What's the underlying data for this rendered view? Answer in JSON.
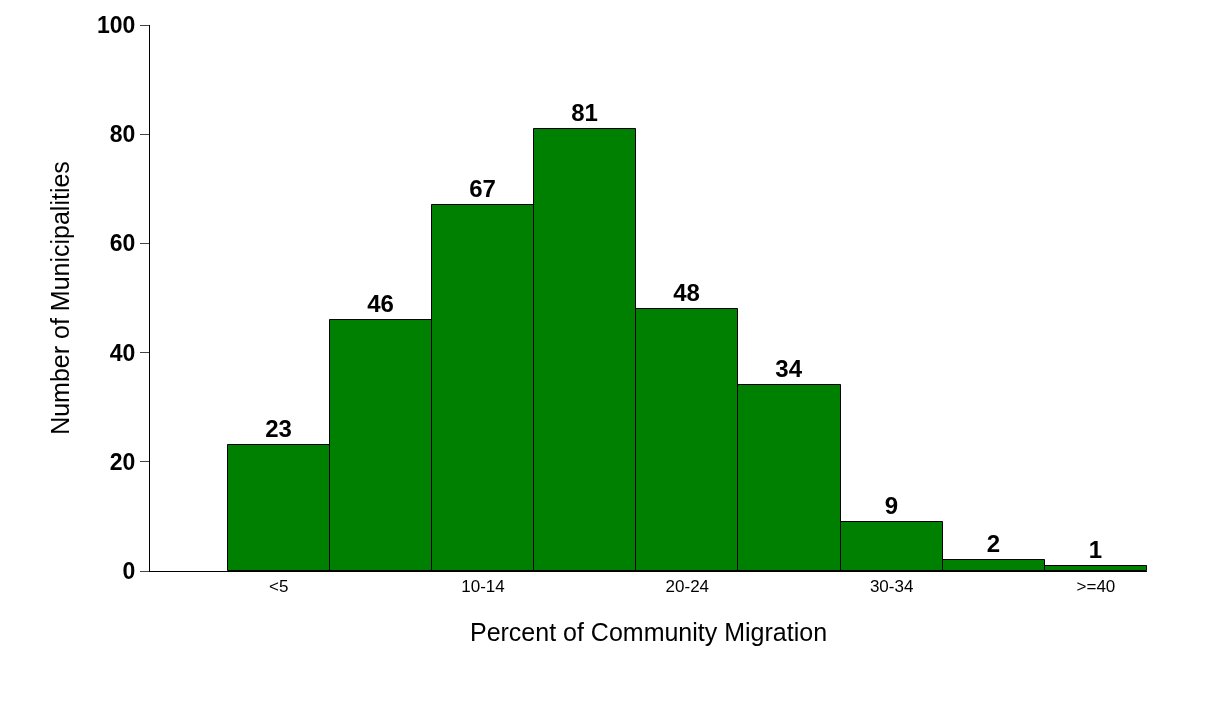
{
  "chart_data": {
    "type": "bar",
    "xlabel": "Percent of Community Migration",
    "ylabel": "Number of Municipalities",
    "categories": [
      "<5",
      null,
      "10-14",
      null,
      "20-24",
      null,
      "30-34",
      null,
      ">=40"
    ],
    "values": [
      23,
      46,
      67,
      81,
      48,
      34,
      9,
      2,
      1
    ],
    "color": "#008000",
    "ylim": [
      0,
      100
    ],
    "yticks": [
      0,
      20,
      40,
      60,
      80,
      100
    ],
    "data_labels": true
  }
}
